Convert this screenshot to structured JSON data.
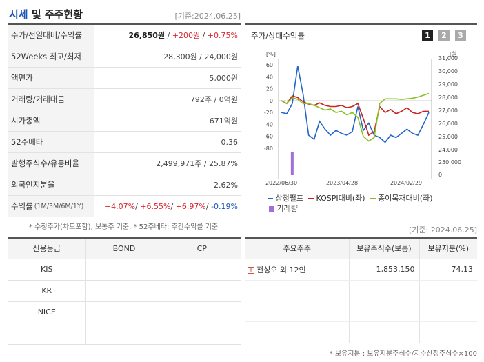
{
  "header": {
    "title_main": "시세",
    "title_rest": " 및 주주현황",
    "base_date": "[기준:2024.06.25]"
  },
  "info": [
    {
      "label": "주가/전일대비/수익률",
      "v1": "26,850원",
      "v2": "+200원",
      "v3": "+0.75%"
    },
    {
      "label": "52Weeks 최고/최저",
      "value": "28,300원 / 24,000원"
    },
    {
      "label": "액면가",
      "value": "5,000원"
    },
    {
      "label": "거래량/거래대금",
      "value": "792주 / 0억원"
    },
    {
      "label": "시가총액",
      "value": "671억원"
    },
    {
      "label": "52주베타",
      "value": "0.36"
    },
    {
      "label": "발행주식수/유동비율",
      "value": "2,499,971주 / 25.87%"
    },
    {
      "label": "외국인지분율",
      "value": "2.62%"
    },
    {
      "label": "수익률",
      "label_small": "(1M/3M/6M/1Y)",
      "r1": "+4.07%",
      "r2": "+6.55%",
      "r3": "+6.97%",
      "r4": "-0.19%"
    }
  ],
  "footnote": "* 수정주가(차트포함), 보통주 기준, * 52주베타: 주간수익률 기준",
  "chart": {
    "title": "주가/상대수익률",
    "pages": [
      "1",
      "2",
      "3"
    ],
    "left_unit": "[%]",
    "right_unit": "[원]",
    "legend": [
      {
        "name": "삼정펄프",
        "color": "#2266cc"
      },
      {
        "name": "KOSPI대비(좌)",
        "color": "#cc2222"
      },
      {
        "name": "종이목재대비(좌)",
        "color": "#88c020"
      },
      {
        "name": "거래량",
        "color": "#a070d8"
      }
    ]
  },
  "chart_data": {
    "type": "line",
    "x_ticks": [
      "2022/06/30",
      "2023/04/28",
      "2024/02/29"
    ],
    "y_left_ticks": [
      "60",
      "40",
      "20",
      "0",
      "-20",
      "-40",
      "-60",
      "-80"
    ],
    "y_left_range": [
      -80,
      60
    ],
    "y_right_ticks": [
      "31,000",
      "30,000",
      "29,000",
      "28,000",
      "27,000",
      "26,000",
      "25,000",
      "24,000"
    ],
    "y_right_range": [
      24000,
      31000
    ],
    "volume_ticks": [
      "250,000",
      "0"
    ],
    "volume_range": [
      0,
      250000
    ],
    "series": [
      {
        "name": "삼정펄프",
        "axis": "left",
        "color": "#2266cc",
        "values": [
          -20,
          -22,
          -5,
          58,
          10,
          -58,
          -65,
          -35,
          -48,
          -58,
          -50,
          -55,
          -58,
          -52,
          -10,
          -50,
          -38,
          -58,
          -62,
          -70,
          -58,
          -62,
          -55,
          -48,
          -55,
          -58,
          -40,
          -20
        ]
      },
      {
        "name": "KOSPI대비(좌)",
        "axis": "left",
        "color": "#cc2222",
        "values": [
          0,
          -5,
          8,
          5,
          -2,
          -6,
          -8,
          -4,
          -8,
          -10,
          -10,
          -8,
          -12,
          -10,
          -5,
          -30,
          -58,
          -52,
          -10,
          -20,
          -15,
          -22,
          -18,
          -12,
          -20,
          -22,
          -18,
          -18
        ]
      },
      {
        "name": "종이목재대비(좌)",
        "axis": "left",
        "color": "#88c020",
        "values": [
          0,
          -5,
          5,
          2,
          -5,
          -5,
          -8,
          -12,
          -16,
          -14,
          -20,
          -18,
          -24,
          -20,
          -28,
          -60,
          -68,
          -62,
          -5,
          3,
          3,
          3,
          2,
          3,
          4,
          6,
          9,
          12
        ]
      },
      {
        "name": "거래량",
        "axis": "volume",
        "color": "#a070d8",
        "values": [
          0,
          0,
          300000,
          0,
          0,
          0,
          0,
          0,
          0,
          0,
          0,
          0,
          0,
          0,
          0,
          0,
          0,
          0,
          0,
          0,
          0,
          0,
          0,
          0,
          0,
          0,
          0,
          0
        ]
      }
    ]
  },
  "credit": {
    "headers": [
      "신용등급",
      "BOND",
      "CP"
    ],
    "rows": [
      "KIS",
      "KR",
      "NICE"
    ]
  },
  "holders": {
    "base_date": "[기준: 2024.06.25]",
    "headers": [
      "주요주주",
      "보유주식수(보통)",
      "보유지분(%)"
    ],
    "rows": [
      {
        "name": "전성오 외 12인",
        "shares": "1,853,150",
        "ratio": "74.13"
      }
    ],
    "footnote": "* 보유지분 : 보유지분주식수/지수산정주식수×100"
  }
}
